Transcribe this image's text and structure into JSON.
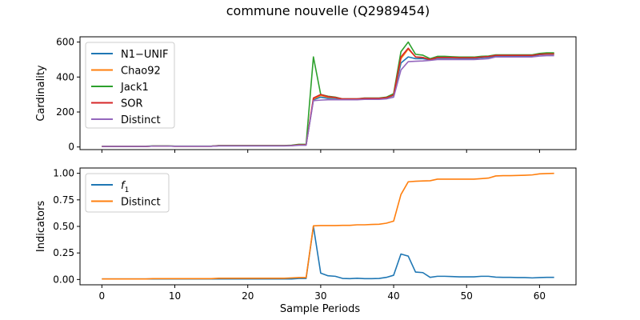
{
  "chart_data": [
    {
      "type": "line",
      "title": "commune nouvelle (Q2989454)",
      "xlabel": "",
      "ylabel": "Cardinality",
      "xlim": [
        -3,
        65
      ],
      "ylim": [
        -15,
        630
      ],
      "xticks": [
        0,
        10,
        20,
        30,
        40,
        50,
        60
      ],
      "yticks": [
        0,
        200,
        400,
        600
      ],
      "show_x_tick_labels": false,
      "grid": false,
      "legend_position": "top-left",
      "series": [
        {
          "name": "N1−UNIF",
          "color": "#1f77b4",
          "x": [
            0,
            1,
            2,
            3,
            4,
            5,
            6,
            7,
            8,
            9,
            10,
            11,
            12,
            13,
            14,
            15,
            16,
            17,
            18,
            19,
            20,
            21,
            22,
            23,
            24,
            25,
            26,
            27,
            28,
            29,
            30,
            31,
            32,
            33,
            34,
            35,
            36,
            37,
            38,
            39,
            40,
            41,
            42,
            43,
            44,
            45,
            46,
            47,
            48,
            49,
            50,
            51,
            52,
            53,
            54,
            55,
            56,
            57,
            58,
            59,
            60,
            61,
            62
          ],
          "values": [
            3,
            3,
            3,
            3,
            3,
            3,
            3,
            5,
            5,
            5,
            4,
            4,
            4,
            4,
            4,
            4,
            7,
            7,
            7,
            7,
            7,
            7,
            7,
            7,
            7,
            7,
            8,
            12,
            12,
            270,
            285,
            278,
            278,
            272,
            272,
            272,
            276,
            276,
            276,
            280,
            295,
            480,
            515,
            505,
            505,
            498,
            508,
            508,
            508,
            506,
            506,
            506,
            510,
            513,
            520,
            520,
            520,
            520,
            520,
            520,
            528,
            530,
            530
          ]
        },
        {
          "name": "Chao92",
          "color": "#ff7f0e",
          "x": [
            0,
            1,
            2,
            3,
            4,
            5,
            6,
            7,
            8,
            9,
            10,
            11,
            12,
            13,
            14,
            15,
            16,
            17,
            18,
            19,
            20,
            21,
            22,
            23,
            24,
            25,
            26,
            27,
            28,
            29,
            30,
            31,
            32,
            33,
            34,
            35,
            36,
            37,
            38,
            39,
            40,
            41,
            42,
            43,
            44,
            45,
            46,
            47,
            48,
            49,
            50,
            51,
            52,
            53,
            54,
            55,
            56,
            57,
            58,
            59,
            60,
            61,
            62
          ],
          "values": [
            3,
            3,
            3,
            3,
            3,
            3,
            3,
            5,
            5,
            5,
            4,
            4,
            4,
            4,
            4,
            4,
            7,
            7,
            7,
            7,
            7,
            7,
            7,
            7,
            7,
            7,
            8,
            12,
            12,
            275,
            295,
            285,
            282,
            274,
            274,
            274,
            278,
            278,
            278,
            282,
            298,
            505,
            560,
            515,
            512,
            500,
            512,
            512,
            512,
            510,
            510,
            510,
            515,
            518,
            525,
            525,
            525,
            525,
            525,
            525,
            532,
            535,
            535
          ]
        },
        {
          "name": "Jack1",
          "color": "#2ca02c",
          "x": [
            0,
            1,
            2,
            3,
            4,
            5,
            6,
            7,
            8,
            9,
            10,
            11,
            12,
            13,
            14,
            15,
            16,
            17,
            18,
            19,
            20,
            21,
            22,
            23,
            24,
            25,
            26,
            27,
            28,
            29,
            30,
            31,
            32,
            33,
            34,
            35,
            36,
            37,
            38,
            39,
            40,
            41,
            42,
            43,
            44,
            45,
            46,
            47,
            48,
            49,
            50,
            51,
            52,
            53,
            54,
            55,
            56,
            57,
            58,
            59,
            60,
            61,
            62
          ],
          "values": [
            4,
            4,
            4,
            4,
            4,
            4,
            4,
            6,
            6,
            6,
            5,
            5,
            5,
            5,
            5,
            5,
            8,
            8,
            8,
            8,
            8,
            8,
            8,
            8,
            8,
            8,
            10,
            15,
            15,
            515,
            300,
            290,
            285,
            275,
            275,
            275,
            280,
            280,
            280,
            285,
            305,
            545,
            600,
            530,
            525,
            505,
            518,
            518,
            516,
            514,
            514,
            514,
            518,
            520,
            527,
            527,
            527,
            527,
            527,
            527,
            535,
            538,
            538
          ]
        },
        {
          "name": "SOR",
          "color": "#d62728",
          "x": [
            0,
            1,
            2,
            3,
            4,
            5,
            6,
            7,
            8,
            9,
            10,
            11,
            12,
            13,
            14,
            15,
            16,
            17,
            18,
            19,
            20,
            21,
            22,
            23,
            24,
            25,
            26,
            27,
            28,
            29,
            30,
            31,
            32,
            33,
            34,
            35,
            36,
            37,
            38,
            39,
            40,
            41,
            42,
            43,
            44,
            45,
            46,
            47,
            48,
            49,
            50,
            51,
            52,
            53,
            54,
            55,
            56,
            57,
            58,
            59,
            60,
            61,
            62
          ],
          "values": [
            3,
            3,
            3,
            3,
            3,
            3,
            3,
            5,
            5,
            5,
            4,
            4,
            4,
            4,
            4,
            4,
            7,
            7,
            7,
            7,
            7,
            7,
            7,
            7,
            7,
            7,
            8,
            12,
            12,
            280,
            300,
            288,
            283,
            275,
            275,
            275,
            278,
            278,
            278,
            282,
            298,
            515,
            565,
            515,
            512,
            500,
            512,
            512,
            512,
            510,
            510,
            510,
            514,
            517,
            524,
            524,
            524,
            524,
            524,
            524,
            530,
            532,
            532
          ]
        },
        {
          "name": "Distinct",
          "color": "#9467bd",
          "x": [
            0,
            1,
            2,
            3,
            4,
            5,
            6,
            7,
            8,
            9,
            10,
            11,
            12,
            13,
            14,
            15,
            16,
            17,
            18,
            19,
            20,
            21,
            22,
            23,
            24,
            25,
            26,
            27,
            28,
            29,
            30,
            31,
            32,
            33,
            34,
            35,
            36,
            37,
            38,
            39,
            40,
            41,
            42,
            43,
            44,
            45,
            46,
            47,
            48,
            49,
            50,
            51,
            52,
            53,
            54,
            55,
            56,
            57,
            58,
            59,
            60,
            61,
            62
          ],
          "values": [
            3,
            3,
            3,
            3,
            3,
            3,
            3,
            5,
            5,
            5,
            4,
            4,
            4,
            4,
            4,
            4,
            6,
            6,
            6,
            6,
            6,
            6,
            6,
            6,
            6,
            6,
            7,
            10,
            10,
            265,
            268,
            270,
            270,
            270,
            270,
            270,
            272,
            272,
            272,
            275,
            285,
            440,
            488,
            490,
            492,
            495,
            500,
            500,
            500,
            500,
            500,
            500,
            502,
            505,
            515,
            515,
            515,
            515,
            515,
            515,
            520,
            522,
            522
          ]
        }
      ]
    },
    {
      "type": "line",
      "title": "",
      "xlabel": "Sample Periods",
      "ylabel": "Indicators",
      "xlim": [
        -3,
        65
      ],
      "ylim": [
        -0.05,
        1.05
      ],
      "xticks": [
        0,
        10,
        20,
        30,
        40,
        50,
        60
      ],
      "yticks": [
        0.0,
        0.25,
        0.5,
        0.75,
        1.0
      ],
      "ytick_labels": [
        "0.00",
        "0.25",
        "0.50",
        "0.75",
        "1.00"
      ],
      "show_x_tick_labels": true,
      "grid": false,
      "legend_position": "top-left",
      "series": [
        {
          "name": "f",
          "name_subscript": "1",
          "color": "#1f77b4",
          "x": [
            0,
            1,
            2,
            3,
            4,
            5,
            6,
            7,
            8,
            9,
            10,
            11,
            12,
            13,
            14,
            15,
            16,
            17,
            18,
            19,
            20,
            21,
            22,
            23,
            24,
            25,
            26,
            27,
            28,
            29,
            30,
            31,
            32,
            33,
            34,
            35,
            36,
            37,
            38,
            39,
            40,
            41,
            42,
            43,
            44,
            45,
            46,
            47,
            48,
            49,
            50,
            51,
            52,
            53,
            54,
            55,
            56,
            57,
            58,
            59,
            60,
            61,
            62
          ],
          "values": [
            0.005,
            0.005,
            0.005,
            0.005,
            0.005,
            0.005,
            0.005,
            0.005,
            0.005,
            0.005,
            0.005,
            0.005,
            0.005,
            0.005,
            0.005,
            0.005,
            0.005,
            0.005,
            0.005,
            0.005,
            0.005,
            0.005,
            0.005,
            0.005,
            0.005,
            0.005,
            0.005,
            0.01,
            0.01,
            0.5,
            0.06,
            0.035,
            0.03,
            0.01,
            0.008,
            0.012,
            0.008,
            0.008,
            0.01,
            0.02,
            0.04,
            0.24,
            0.22,
            0.07,
            0.065,
            0.02,
            0.03,
            0.03,
            0.028,
            0.025,
            0.025,
            0.025,
            0.03,
            0.03,
            0.022,
            0.02,
            0.02,
            0.018,
            0.018,
            0.015,
            0.018,
            0.02,
            0.02
          ]
        },
        {
          "name": "Distinct",
          "color": "#ff7f0e",
          "x": [
            0,
            1,
            2,
            3,
            4,
            5,
            6,
            7,
            8,
            9,
            10,
            11,
            12,
            13,
            14,
            15,
            16,
            17,
            18,
            19,
            20,
            21,
            22,
            23,
            24,
            25,
            26,
            27,
            28,
            29,
            30,
            31,
            32,
            33,
            34,
            35,
            36,
            37,
            38,
            39,
            40,
            41,
            42,
            43,
            44,
            45,
            46,
            47,
            48,
            49,
            50,
            51,
            52,
            53,
            54,
            55,
            56,
            57,
            58,
            59,
            60,
            61,
            62
          ],
          "values": [
            0.005,
            0.005,
            0.005,
            0.005,
            0.005,
            0.005,
            0.005,
            0.008,
            0.008,
            0.008,
            0.008,
            0.008,
            0.008,
            0.008,
            0.008,
            0.008,
            0.012,
            0.012,
            0.012,
            0.012,
            0.012,
            0.012,
            0.012,
            0.012,
            0.012,
            0.012,
            0.015,
            0.018,
            0.018,
            0.505,
            0.508,
            0.508,
            0.508,
            0.51,
            0.51,
            0.515,
            0.515,
            0.518,
            0.52,
            0.53,
            0.55,
            0.8,
            0.92,
            0.925,
            0.928,
            0.93,
            0.945,
            0.945,
            0.945,
            0.945,
            0.945,
            0.945,
            0.95,
            0.955,
            0.975,
            0.978,
            0.978,
            0.98,
            0.982,
            0.985,
            0.995,
            0.998,
            1.0
          ]
        }
      ]
    }
  ]
}
